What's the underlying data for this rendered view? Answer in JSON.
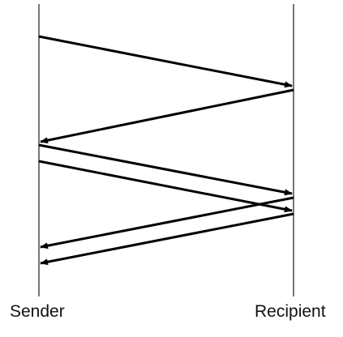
{
  "participants": {
    "sender": "Sender",
    "recipient": "Recipient"
  },
  "messages": [
    {
      "from": "sender",
      "to": "recipient"
    },
    {
      "from": "recipient",
      "to": "sender"
    },
    {
      "from": "sender",
      "to": "recipient"
    },
    {
      "from": "sender",
      "to": "recipient"
    },
    {
      "from": "recipient",
      "to": "sender"
    },
    {
      "from": "recipient",
      "to": "sender"
    }
  ],
  "colors": {
    "lifeline": "#777777",
    "arrow": "#000000",
    "text": "#111111"
  }
}
